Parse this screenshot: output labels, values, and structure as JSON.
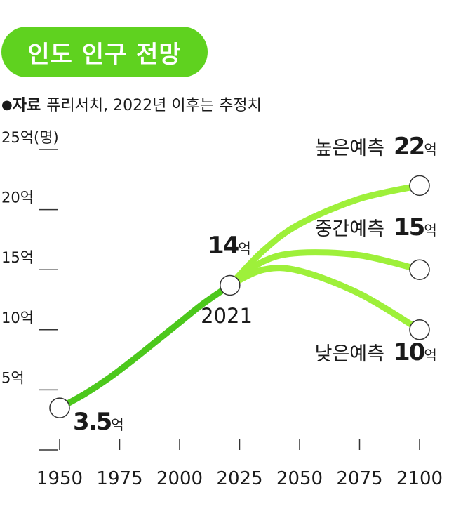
{
  "header": {
    "title": "인도 인구 전망",
    "source_label": "자료",
    "source_text": "퓨리서치, 2022년 이후는 추정치"
  },
  "colors": {
    "accent": "#5fd21f",
    "historic_line": "#4cc81c",
    "projection_line": "#9ef03a",
    "marker_fill": "#ffffff",
    "text": "#1a1a1a",
    "axis": "#333333"
  },
  "chart_data": {
    "type": "line",
    "ylabel": "25억(명)",
    "ylim": [
      0,
      25
    ],
    "xlim": [
      1950,
      2100
    ],
    "x_ticks": [
      1950,
      1975,
      2000,
      2025,
      2050,
      2075,
      2100
    ],
    "y_ticks": [
      {
        "value": 5,
        "label": "5억"
      },
      {
        "value": 10,
        "label": "10억"
      },
      {
        "value": 15,
        "label": "15억"
      },
      {
        "value": 20,
        "label": "20억"
      }
    ],
    "grid": false,
    "series": [
      {
        "role": "historic",
        "points": [
          {
            "x": 1950,
            "y": 3.5
          },
          {
            "x": 1960,
            "y": 4.6
          },
          {
            "x": 1970,
            "y": 5.9
          },
          {
            "x": 1980,
            "y": 7.4
          },
          {
            "x": 1990,
            "y": 9.0
          },
          {
            "x": 2000,
            "y": 10.6
          },
          {
            "x": 2010,
            "y": 12.2
          },
          {
            "x": 2021,
            "y": 13.7
          }
        ]
      },
      {
        "name": "높은예측",
        "role": "projection",
        "points": [
          {
            "x": 2021,
            "y": 13.7
          },
          {
            "x": 2035,
            "y": 16.6
          },
          {
            "x": 2050,
            "y": 18.8
          },
          {
            "x": 2075,
            "y": 20.9
          },
          {
            "x": 2100,
            "y": 22.0
          }
        ]
      },
      {
        "name": "중간예측",
        "role": "projection",
        "points": [
          {
            "x": 2021,
            "y": 13.7
          },
          {
            "x": 2035,
            "y": 15.7
          },
          {
            "x": 2050,
            "y": 16.4
          },
          {
            "x": 2075,
            "y": 16.2
          },
          {
            "x": 2100,
            "y": 15.0
          }
        ]
      },
      {
        "name": "낮은예측",
        "role": "projection",
        "points": [
          {
            "x": 2021,
            "y": 13.7
          },
          {
            "x": 2035,
            "y": 15.0
          },
          {
            "x": 2050,
            "y": 14.9
          },
          {
            "x": 2075,
            "y": 13.0
          },
          {
            "x": 2100,
            "y": 10.0
          }
        ]
      }
    ],
    "markers": [
      {
        "x": 1950,
        "y": 3.5
      },
      {
        "x": 2021,
        "y": 13.7
      },
      {
        "x": 2100,
        "y": 22.0
      },
      {
        "x": 2100,
        "y": 15.0
      },
      {
        "x": 2100,
        "y": 10.0
      }
    ],
    "annotations": [
      {
        "id": "start",
        "x": 1950,
        "y": 3.5,
        "value": "3.5",
        "unit": "억"
      },
      {
        "id": "current",
        "x": 2021,
        "y": 13.7,
        "value": "14",
        "unit": "억",
        "year": "2021"
      },
      {
        "id": "high",
        "x": 2100,
        "y": 22.0,
        "label": "높은예측",
        "value": "22",
        "unit": "억"
      },
      {
        "id": "mid",
        "x": 2100,
        "y": 15.0,
        "label": "중간예측",
        "value": "15",
        "unit": "억"
      },
      {
        "id": "low",
        "x": 2100,
        "y": 10.0,
        "label": "낮은예측",
        "value": "10",
        "unit": "억"
      }
    ]
  }
}
